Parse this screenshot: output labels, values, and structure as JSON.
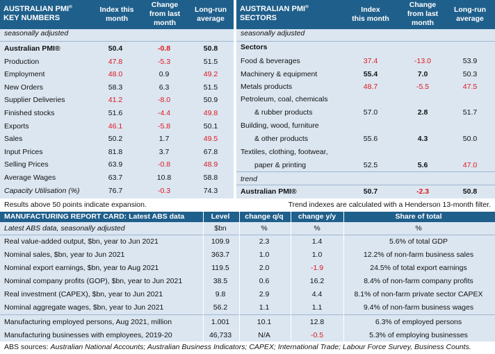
{
  "kn": {
    "title1": "AUSTRALIAN PMI",
    "title_sup": "®",
    "title2": "KEY NUMBERS",
    "col_index": [
      "Index this",
      "month"
    ],
    "col_change": [
      "Change",
      "from last",
      "month"
    ],
    "col_lr": [
      "Long-run",
      "average"
    ],
    "subheader": "seasonally adjusted",
    "rows": [
      {
        "label": "Australian PMI®",
        "index": "50.4",
        "change": "-0.8",
        "lr": "50.8"
      },
      {
        "label": "Production",
        "index": "47.8",
        "change": "-5.3",
        "lr": "51.5"
      },
      {
        "label": "Employment",
        "index": "48.0",
        "change": "0.9",
        "lr": "49.2"
      },
      {
        "label": "New Orders",
        "index": "58.3",
        "change": "6.3",
        "lr": "51.5"
      },
      {
        "label": "Supplier Deliveries",
        "index": "41.2",
        "change": "-8.0",
        "lr": "50.9"
      },
      {
        "label": "Finished stocks",
        "index": "51.6",
        "change": "-4.4",
        "lr": "49.8"
      },
      {
        "label": "Exports",
        "index": "46.1",
        "change": "-5.8",
        "lr": "50.1"
      },
      {
        "label": "Sales",
        "index": "50.2",
        "change": "1.7",
        "lr": "49.5"
      },
      {
        "label": "Input Prices",
        "index": "81.8",
        "change": "3.7",
        "lr": "67.8"
      },
      {
        "label": "Selling Prices",
        "index": "63.9",
        "change": "-0.8",
        "lr": "48.9"
      },
      {
        "label": "Average Wages",
        "index": "63.7",
        "change": "10.8",
        "lr": "58.8"
      },
      {
        "label": "Capacity Utilisation (%)",
        "index": "76.7",
        "change": "-0.3",
        "lr": "74.3"
      }
    ]
  },
  "sectors": {
    "title1": "AUSTRALIAN PMI",
    "title_sup": "®",
    "title2": "SECTORS",
    "col_index": [
      "Index",
      "this month"
    ],
    "col_change": [
      "Change",
      "from last",
      "month"
    ],
    "col_lr": [
      "Long-run",
      "average"
    ],
    "subheader": "seasonally adjusted",
    "sectors_label": "Sectors",
    "rows": [
      {
        "label": "Food & beverages",
        "index": "37.4",
        "change": "-13.0",
        "lr": "53.9"
      },
      {
        "label": "Machinery & equipment",
        "index": "55.4",
        "change": "7.0",
        "lr": "50.3"
      },
      {
        "label": "Metals products",
        "index": "48.7",
        "change": "-5.5",
        "lr": "47.5"
      },
      {
        "label": "Petroleum, coal, chemicals",
        "label2": "& rubber products",
        "index": "57.0",
        "change": "2.8",
        "lr": "51.7"
      },
      {
        "label": "Building, wood, furniture",
        "label2": "& other products",
        "index": "55.6",
        "change": "4.3",
        "lr": "50.0"
      },
      {
        "label": "Textiles, clothing, footwear,",
        "label2": "paper & printing",
        "index": "52.5",
        "change": "5.6",
        "lr": "47.0"
      }
    ],
    "trend_label": "trend",
    "trend_row": {
      "label": "Australian PMI®",
      "index": "50.7",
      "change": "-2.3",
      "lr": "50.8"
    }
  },
  "notes": {
    "left": "Results above 50 points indicate expansion.",
    "right": "Trend indexes are calculated with a Henderson 13-month filter."
  },
  "card": {
    "title": "MANUFACTURING REPORT CARD: Latest ABS data",
    "col_level": "Level",
    "col_qq": "change q/q",
    "col_yy": "change y/y",
    "col_share": "Share of total",
    "sub": {
      "label": "Latest ABS data, seasonally adjusted",
      "level": "$bn",
      "qq": "%",
      "yy": "%",
      "share": "%"
    },
    "rows": [
      {
        "label": "Real value-added output, $bn, year to Jun 2021",
        "level": "109.9",
        "qq": "2.3",
        "yy": "1.4",
        "share": "5.6% of total GDP"
      },
      {
        "label": "Nominal sales, $bn, year to Jun 2021",
        "level": "363.7",
        "qq": "1.0",
        "yy": "1.0",
        "share": "12.2% of non-farm business sales"
      },
      {
        "label": "Nominal export earnings, $bn, year to Aug 2021",
        "level": "119.5",
        "qq": "2.0",
        "yy": "-1.9",
        "share": "24.5% of total export earnings"
      },
      {
        "label": "Nominal company profits (GOP), $bn, year to Jun 2021",
        "level": "38.5",
        "qq": "0.6",
        "yy": "16.2",
        "share": "8.4% of non-farm company profits"
      },
      {
        "label": "Real investment (CAPEX), $bn, year to Jun 2021",
        "level": "9.8",
        "qq": "2.9",
        "yy": "4.4",
        "share": "8.1% of non-farm private sector CAPEX"
      },
      {
        "label": "Nominal aggregate wages, $bn, year to Jun 2021",
        "level": "56.2",
        "qq": "1.1",
        "yy": "1.1",
        "share": "9.4% of non-farm business wages"
      },
      {
        "label": "Manufacturing employed persons, Aug 2021, million",
        "level": "1.001",
        "qq": "10.1",
        "yy": "12.8",
        "share": "6.3% of employed persons"
      },
      {
        "label": "Manufacturing businesses with employees, 2019-20",
        "level": "46,733",
        "qq": "N/A",
        "yy": "-0.5",
        "share": "5.3% of employing businesses"
      }
    ],
    "sources_label": "ABS sources: ",
    "sources": "Australian National Accounts; Australian Business Indicators; CAPEX; International Trade; Labour Force Survey, Business Counts."
  },
  "colors": {
    "header": "#1f5f8b",
    "shade": "#dbe6f1",
    "negative": "#e0171b"
  }
}
